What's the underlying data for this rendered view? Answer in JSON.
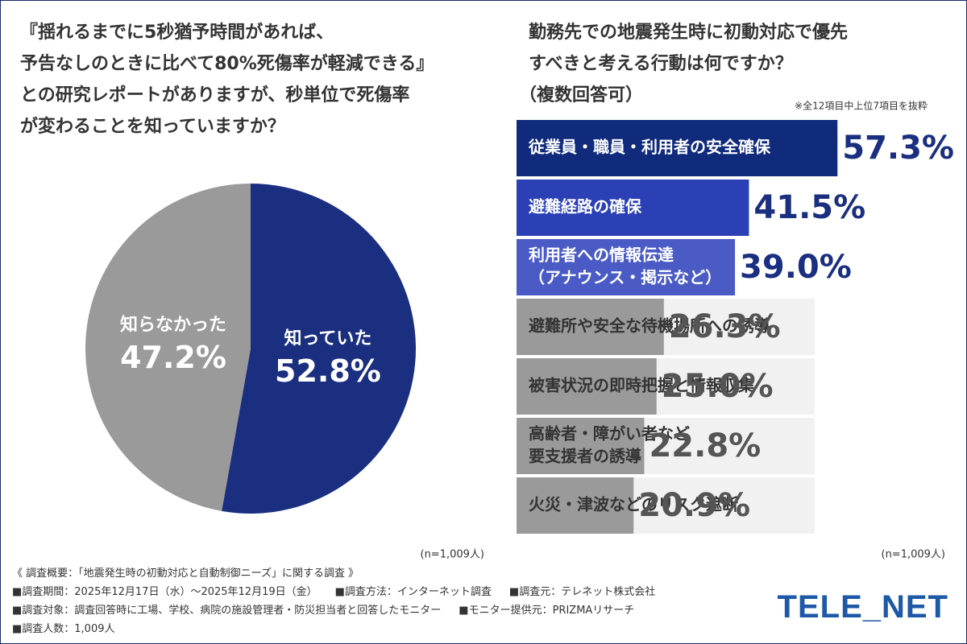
{
  "chart_data": [
    {
      "type": "pie",
      "title": [
        "『揺れるまでに5秒猶予時間があれば、",
        "予告なしのときに比べて80%死傷率が軽減できる』",
        "との研究レポートがありますが、秒単位で死傷率",
        "が変わることを知っていますか？"
      ],
      "categories": [
        "知っていた",
        "知らなかった"
      ],
      "values": [
        52.8,
        47.2
      ],
      "value_labels": [
        "52.8%",
        "47.2%"
      ],
      "colors": [
        "#1b2f80",
        "#9b9a9a"
      ],
      "note": "(n=1,009人)"
    },
    {
      "type": "hbar",
      "title": [
        "勤務先での地震発生時に初動対応で優先",
        "すべきと考える行動は何ですか？",
        "（複数回答可）"
      ],
      "subtitle": "※全12項目中上位7項目を抜粋",
      "categories": [
        [
          "従業員・職員・利用者の安全確保"
        ],
        [
          "避難経路の確保"
        ],
        [
          "利用者への情報伝達",
          "（アナウンス・掲示など）"
        ],
        [
          "避難所や安全な待機場所への誘導"
        ],
        [
          "被害状況の即時把握と情報収集"
        ],
        [
          "高齢者・障がい者など",
          "要支援者の誘導"
        ],
        [
          "火災・津波などのリスク遮断"
        ]
      ],
      "values": [
        57.3,
        41.5,
        39.0,
        26.3,
        25.0,
        22.8,
        20.9
      ],
      "value_labels": [
        "57.3%",
        "41.5%",
        "39.0%",
        "26.3%",
        "25.0%",
        "22.8%",
        "20.9%"
      ],
      "colors": [
        "#102a7c",
        "#2b40b4",
        "#4a5bc6",
        "#9b9a9a",
        "#9b9a9a",
        "#9b9a9a",
        "#9b9a9a"
      ],
      "note": "(n=1,009人)"
    }
  ],
  "footer": [
    [
      "《 調査概要：「地震発生時の初動対応と自動制御ニーズ」に関する調査 》"
    ],
    [
      "■調査期間：2025年12月17日（水）～2025年12月19日（金）",
      "■調査方法：インターネット調査",
      "■調査元：テレネット株式会社"
    ],
    [
      "■調査対象：調査回答時に工場、学校、病院の施設管理者・防災担当者と回答したモニター",
      "■モニター提供元：PRIZMAリサーチ"
    ],
    [
      "■調査人数：1,009人"
    ]
  ],
  "logo": "TELE_NET"
}
